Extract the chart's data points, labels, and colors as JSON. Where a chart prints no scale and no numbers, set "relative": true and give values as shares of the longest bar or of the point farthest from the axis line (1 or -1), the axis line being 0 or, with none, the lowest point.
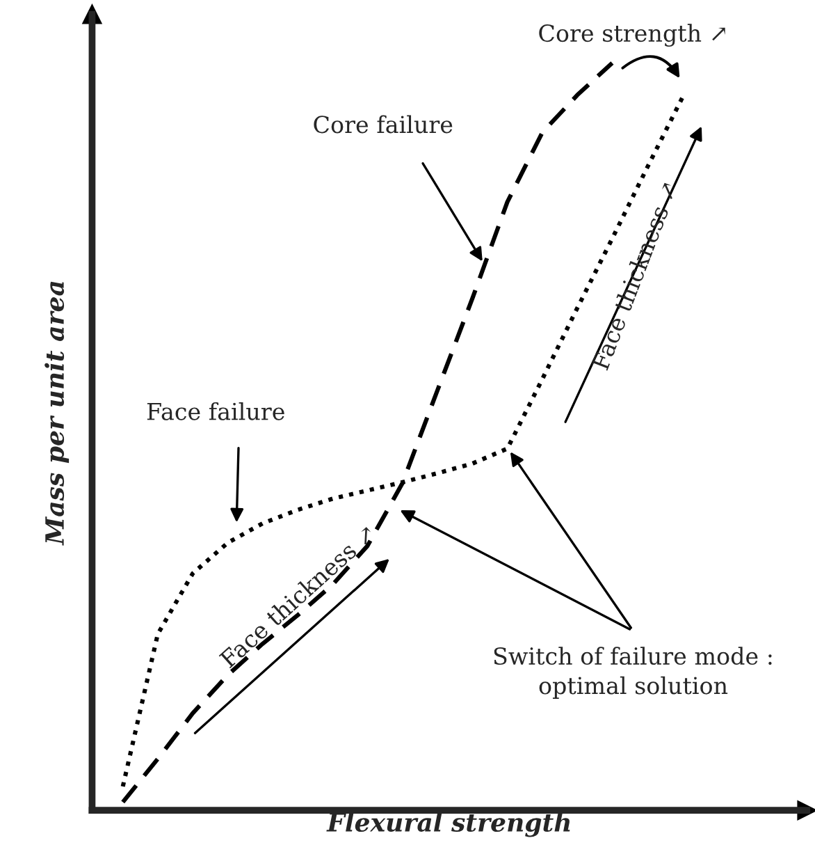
{
  "chart_data": {
    "type": "line",
    "relative": true,
    "xlabel": "Flexural strength",
    "ylabel": "Mass per unit area",
    "categories": [
      null,
      null,
      null,
      null,
      null,
      null,
      null,
      null,
      null,
      null,
      null,
      null,
      null,
      null,
      null,
      null,
      null
    ],
    "series": [
      {
        "color": "#000000",
        "line_style": "dashed",
        "values": [
          0.011,
          0.069,
          0.13,
          0.181,
          0.223,
          0.261,
          0.302,
          0.354,
          0.438,
          0.562,
          0.685,
          0.814,
          0.907,
          0.957,
          1.0,
          null,
          null
        ]
      },
      {
        "color": "#000000",
        "line_style": "dotted",
        "values": [
          0.032,
          0.236,
          0.317,
          0.358,
          0.384,
          0.402,
          0.417,
          0.428,
          0.439,
          0.451,
          0.464,
          0.484,
          0.577,
          0.672,
          0.765,
          0.86,
          0.953
        ]
      }
    ],
    "annotations": [
      "Core failure",
      "Face failure",
      "Core strength ↗",
      "Face thickness ↗",
      "Face thickness ↗",
      "Switch of failure mode :\noptimal solution"
    ]
  }
}
